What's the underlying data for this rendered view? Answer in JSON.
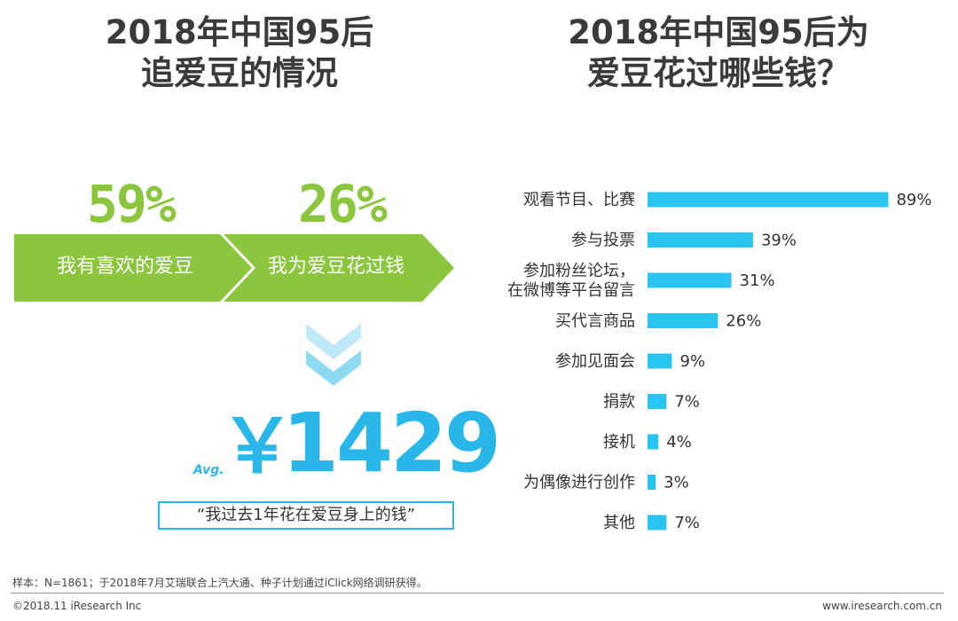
{
  "left_title": {
    "line1": "2018年中国95后",
    "line2": "追爱豆的情况"
  },
  "right_title": {
    "line1": "2018年中国95后为",
    "line2": "爱豆花过哪些钱？"
  },
  "funnel": {
    "steps": [
      {
        "pct": "59%",
        "label": "我有喜欢的爱豆"
      },
      {
        "pct": "26%",
        "label": "我为爱豆花过钱"
      }
    ],
    "avg_label": "Avg.",
    "currency": "￥",
    "amount": "1429",
    "quote": "“我过去1年花在爱豆身上的钱”",
    "colors": {
      "green": "#8cc63f",
      "blue": "#29b6e8",
      "chevron_light": "#bfe9f7"
    }
  },
  "chart_data": {
    "type": "bar",
    "orientation": "horizontal",
    "title": "2018年中国95后为爱豆花过哪些钱？",
    "categories": [
      "观看节目、比赛",
      "参与投票",
      "参加粉丝论坛，在微博等平台留言",
      "买代言商品",
      "参加见面会",
      "捐款",
      "接机",
      "为偶像进行创作",
      "其他"
    ],
    "category_lines": [
      [
        "观看节目、比赛"
      ],
      [
        "参与投票"
      ],
      [
        "参加粉丝论坛，",
        "在微博等平台留言"
      ],
      [
        "买代言商品"
      ],
      [
        "参加见面会"
      ],
      [
        "捐款"
      ],
      [
        "接机"
      ],
      [
        "为偶像进行创作"
      ],
      [
        "其他"
      ]
    ],
    "values": [
      89,
      39,
      31,
      26,
      9,
      7,
      4,
      3,
      7
    ],
    "value_labels": [
      "89%",
      "39%",
      "31%",
      "26%",
      "9%",
      "7%",
      "4%",
      "3%",
      "7%"
    ],
    "unit": "%",
    "xlim": [
      0,
      100
    ],
    "bar_color": "#29c4ef",
    "grid": false
  },
  "footer": {
    "note": "样本：N=1861；于2018年7月艾瑞联合上汽大通、种子计划通过iClick网络调研获得。",
    "copyright": "©2018.11 iResearch Inc",
    "website": "www.iresearch.com.cn"
  }
}
